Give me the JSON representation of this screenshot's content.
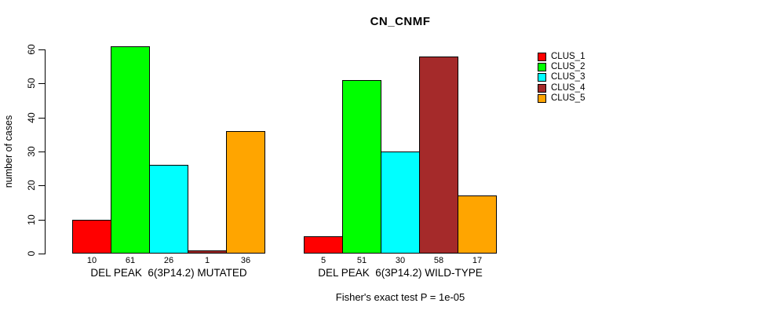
{
  "title": "CN_CNMF",
  "ylabel": "number of cases",
  "footer": "Fisher's exact test P = 1e-05",
  "legend": [
    {
      "label": "CLUS_1",
      "color": "#FF0000"
    },
    {
      "label": "CLUS_2",
      "color": "#00FF00"
    },
    {
      "label": "CLUS_3",
      "color": "#00FFFF"
    },
    {
      "label": "CLUS_4",
      "color": "#A52A2A"
    },
    {
      "label": "CLUS_5",
      "color": "#FFA500"
    }
  ],
  "chart_data": {
    "type": "bar",
    "title": "CN_CNMF",
    "ylabel": "number of cases",
    "xlabel": "",
    "ylim": [
      0,
      60
    ],
    "yticks": [
      0,
      10,
      20,
      30,
      40,
      50,
      60
    ],
    "grid": false,
    "legend_position": "right",
    "series": [
      "CLUS_1",
      "CLUS_2",
      "CLUS_3",
      "CLUS_4",
      "CLUS_5"
    ],
    "colors": [
      "#FF0000",
      "#00FF00",
      "#00FFFF",
      "#A52A2A",
      "#FFA500"
    ],
    "groups": [
      {
        "label": "DEL PEAK  6(3P14.2) MUTATED",
        "values": [
          10,
          61,
          26,
          1,
          36
        ]
      },
      {
        "label": "DEL PEAK  6(3P14.2) WILD-TYPE",
        "values": [
          5,
          51,
          30,
          58,
          17
        ]
      }
    ],
    "annotation": "Fisher's exact test P = 1e-05"
  }
}
